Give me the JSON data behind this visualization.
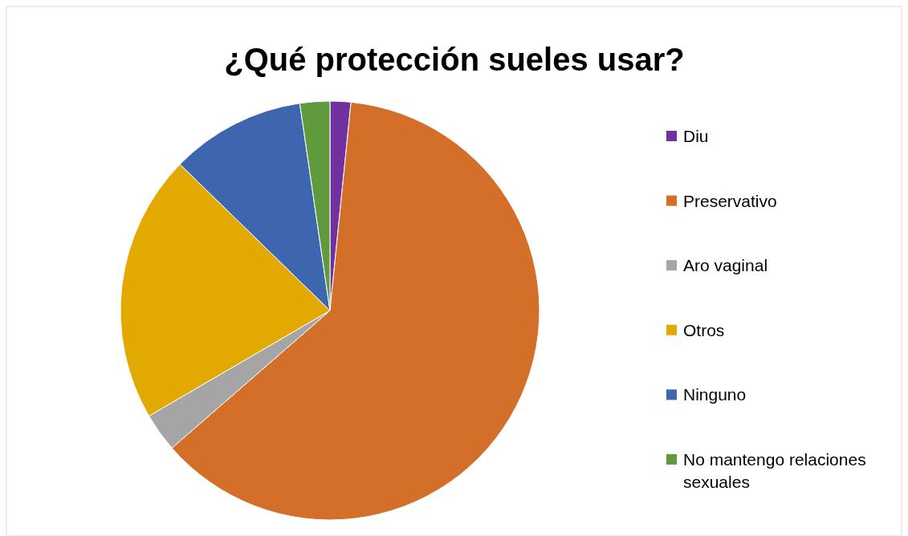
{
  "chart_data": {
    "type": "pie",
    "title": "¿Qué protección sueles usar?",
    "categories": [
      "Diu",
      "Preservativo",
      "Aro vaginal",
      "Otros",
      "Ninguno",
      "No mantengo relaciones sexuales"
    ],
    "values": [
      1.6,
      62.0,
      3.0,
      20.7,
      10.4,
      2.3
    ],
    "colors": [
      "#7030a0",
      "#d46f2a",
      "#a5a5a5",
      "#e2aa00",
      "#3e66ae",
      "#5f9b3c"
    ],
    "legend": "right"
  }
}
